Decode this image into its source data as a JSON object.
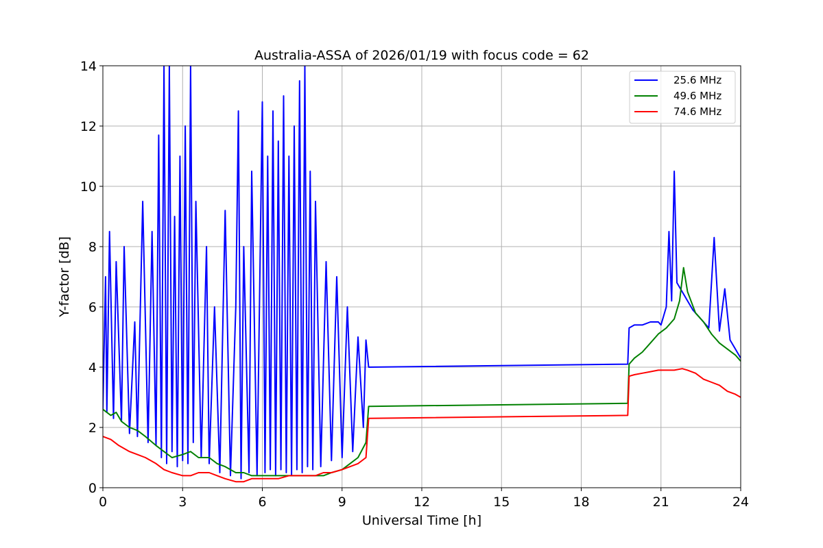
{
  "chart_data": {
    "type": "line",
    "title": "Australia-ASSA of 2026/01/19 with focus code = 62",
    "xlabel": "Universal Time [h]",
    "ylabel": "Y-factor [dB]",
    "xlim": [
      0,
      24
    ],
    "ylim": [
      0,
      14
    ],
    "xticks": [
      0,
      3,
      6,
      9,
      12,
      15,
      18,
      21,
      24
    ],
    "yticks": [
      0,
      2,
      4,
      6,
      8,
      10,
      12,
      14
    ],
    "grid": true,
    "legend_position": "top-right",
    "series": [
      {
        "name": "25.6 MHz",
        "color": "#0000ff",
        "x": [
          0.0,
          0.1,
          0.15,
          0.25,
          0.4,
          0.5,
          0.7,
          0.8,
          1.0,
          1.2,
          1.3,
          1.5,
          1.7,
          1.85,
          2.0,
          2.1,
          2.2,
          2.3,
          2.4,
          2.5,
          2.6,
          2.7,
          2.8,
          2.9,
          3.0,
          3.1,
          3.2,
          3.3,
          3.4,
          3.5,
          3.7,
          3.9,
          4.0,
          4.2,
          4.4,
          4.6,
          4.8,
          5.0,
          5.1,
          5.2,
          5.3,
          5.5,
          5.6,
          5.8,
          6.0,
          6.1,
          6.2,
          6.3,
          6.4,
          6.5,
          6.6,
          6.7,
          6.8,
          6.9,
          7.0,
          7.1,
          7.2,
          7.3,
          7.4,
          7.5,
          7.6,
          7.7,
          7.8,
          7.9,
          8.0,
          8.2,
          8.4,
          8.6,
          8.8,
          9.0,
          9.2,
          9.4,
          9.6,
          9.8,
          9.9,
          10.0,
          19.75,
          19.8,
          20.0,
          20.3,
          20.6,
          20.9,
          21.0,
          21.2,
          21.3,
          21.4,
          21.5,
          21.6,
          21.8,
          22.0,
          22.2,
          22.4,
          22.6,
          22.8,
          23.0,
          23.2,
          23.4,
          23.6,
          23.8,
          24.0
        ],
        "y": [
          2.6,
          7.0,
          2.5,
          8.5,
          2.3,
          7.5,
          2.2,
          8.0,
          1.8,
          5.5,
          1.7,
          9.5,
          1.5,
          8.5,
          1.4,
          11.7,
          1.0,
          14.0,
          0.8,
          14.0,
          1.2,
          9.0,
          0.7,
          11.0,
          0.9,
          12.0,
          0.8,
          14.0,
          1.5,
          9.5,
          1.0,
          8.0,
          0.8,
          6.0,
          0.5,
          9.2,
          0.4,
          6.0,
          12.5,
          0.3,
          8.0,
          0.5,
          10.5,
          0.4,
          12.8,
          0.5,
          11.0,
          0.6,
          12.5,
          0.4,
          11.5,
          0.6,
          13.0,
          0.5,
          11.0,
          0.4,
          12.0,
          0.6,
          13.5,
          0.5,
          14.0,
          0.7,
          10.5,
          0.6,
          9.5,
          0.7,
          7.5,
          0.9,
          7.0,
          1.0,
          6.0,
          1.2,
          5.0,
          2.0,
          4.9,
          4.0,
          4.1,
          5.3,
          5.4,
          5.4,
          5.5,
          5.5,
          5.4,
          6.0,
          8.5,
          6.2,
          10.5,
          6.8,
          6.5,
          6.2,
          5.9,
          5.7,
          5.5,
          5.3,
          8.3,
          5.2,
          6.6,
          4.9,
          4.6,
          4.3
        ]
      },
      {
        "name": "49.6 MHz",
        "color": "#008000",
        "x": [
          0.0,
          0.3,
          0.5,
          0.7,
          1.0,
          1.3,
          1.6,
          2.0,
          2.3,
          2.6,
          3.0,
          3.3,
          3.6,
          4.0,
          4.3,
          4.6,
          5.0,
          5.3,
          5.6,
          6.0,
          6.3,
          6.6,
          7.0,
          7.3,
          7.6,
          8.0,
          8.3,
          8.6,
          9.0,
          9.3,
          9.6,
          9.9,
          10.0,
          19.75,
          19.8,
          20.0,
          20.3,
          20.6,
          20.9,
          21.2,
          21.5,
          21.7,
          21.85,
          22.0,
          22.3,
          22.6,
          22.9,
          23.2,
          23.5,
          23.8,
          24.0
        ],
        "y": [
          2.6,
          2.4,
          2.5,
          2.2,
          2.0,
          1.9,
          1.7,
          1.4,
          1.2,
          1.0,
          1.1,
          1.2,
          1.0,
          1.0,
          0.8,
          0.7,
          0.5,
          0.5,
          0.4,
          0.4,
          0.4,
          0.4,
          0.4,
          0.4,
          0.4,
          0.4,
          0.4,
          0.5,
          0.6,
          0.8,
          1.0,
          1.5,
          2.7,
          2.8,
          4.1,
          4.3,
          4.5,
          4.8,
          5.1,
          5.3,
          5.6,
          6.2,
          7.3,
          6.5,
          5.8,
          5.5,
          5.1,
          4.8,
          4.6,
          4.4,
          4.2
        ]
      },
      {
        "name": "74.6 MHz",
        "color": "#ff0000",
        "x": [
          0.0,
          0.3,
          0.6,
          1.0,
          1.3,
          1.6,
          2.0,
          2.3,
          2.6,
          3.0,
          3.3,
          3.6,
          4.0,
          4.3,
          4.6,
          5.0,
          5.3,
          5.6,
          6.0,
          6.3,
          6.6,
          7.0,
          7.3,
          7.6,
          8.0,
          8.3,
          8.6,
          9.0,
          9.3,
          9.6,
          9.9,
          10.0,
          19.75,
          19.8,
          20.0,
          20.3,
          20.6,
          20.9,
          21.2,
          21.5,
          21.8,
          22.0,
          22.3,
          22.6,
          22.9,
          23.2,
          23.5,
          23.8,
          24.0
        ],
        "y": [
          1.7,
          1.6,
          1.4,
          1.2,
          1.1,
          1.0,
          0.8,
          0.6,
          0.5,
          0.4,
          0.4,
          0.5,
          0.5,
          0.4,
          0.3,
          0.2,
          0.2,
          0.3,
          0.3,
          0.3,
          0.3,
          0.4,
          0.4,
          0.4,
          0.4,
          0.5,
          0.5,
          0.6,
          0.7,
          0.8,
          1.0,
          2.3,
          2.4,
          3.7,
          3.75,
          3.8,
          3.85,
          3.9,
          3.9,
          3.9,
          3.95,
          3.9,
          3.8,
          3.6,
          3.5,
          3.4,
          3.2,
          3.1,
          3.0
        ]
      }
    ]
  }
}
